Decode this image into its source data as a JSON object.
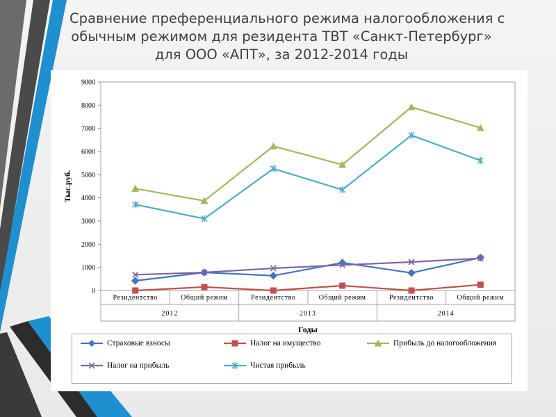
{
  "slide": {
    "title_lines": [
      "Сравнение преференциального режима налогообложения с",
      "обычным режимом для резидента ТВТ «Санкт-Петербург»",
      "для ООО «АПТ», за 2012-2014 годы"
    ]
  },
  "chart_data": {
    "type": "line",
    "title": "",
    "xlabel": "Годы",
    "ylabel": "Тыс.руб.",
    "ylim": [
      0,
      9000
    ],
    "ytick_labels": [
      "0",
      "1000",
      "2000",
      "3000",
      "4000",
      "5000",
      "6000",
      "7000",
      "8000",
      "9000"
    ],
    "categories": [
      "Резидентство",
      "Общий режим",
      "Резидентство",
      "Общий режим",
      "Резидентство",
      "Общий режим"
    ],
    "groups": [
      "2012",
      "2013",
      "2014"
    ],
    "grid": false,
    "legend": "bottom",
    "series": [
      {
        "name": "Страховые взносы",
        "marker": "diamond",
        "color": "#4472c4",
        "values": [
          420,
          780,
          640,
          1200,
          760,
          1420
        ]
      },
      {
        "name": "Налог на имущество",
        "marker": "square",
        "color": "#c0504d",
        "values": [
          0,
          150,
          0,
          210,
          0,
          250
        ]
      },
      {
        "name": "Прибыль до налогообложения",
        "marker": "triangle",
        "color": "#9bbb59",
        "values": [
          4400,
          3870,
          6230,
          5430,
          7920,
          7020
        ]
      },
      {
        "name": "Налог на прибыль",
        "marker": "x",
        "color": "#8064a2",
        "values": [
          680,
          780,
          960,
          1100,
          1230,
          1390
        ]
      },
      {
        "name": "Чистая прибыль",
        "marker": "star",
        "color": "#4bacc6",
        "values": [
          3710,
          3100,
          5260,
          4350,
          6700,
          5610
        ]
      }
    ]
  }
}
